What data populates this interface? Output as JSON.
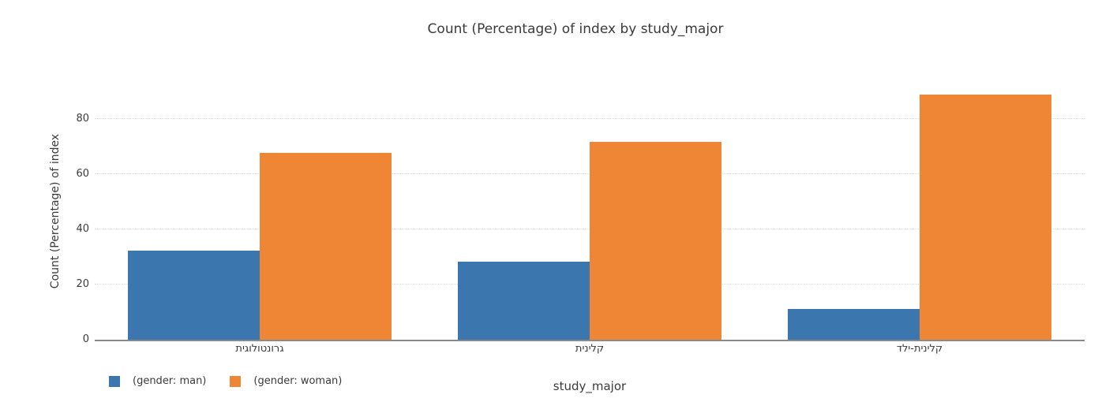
{
  "figure": {
    "title": "Count (Percentage) of index by study_major"
  },
  "y_axis": {
    "label": "Count (Percentage) of index",
    "ticks": [
      0,
      20,
      40,
      60,
      80
    ]
  },
  "x_axis": {
    "label": "study_major",
    "categories": [
      "גרונטולוגית",
      "קלינית",
      "קלינית-ילד"
    ]
  },
  "legend": {
    "items": [
      {
        "label": "(gender: man)",
        "color": "#3b76af"
      },
      {
        "label": "(gender: woman)",
        "color": "#ef8636"
      }
    ]
  },
  "colors": {
    "man_bar": "#3b76af",
    "woman_bar": "#ef8636",
    "axis_line": "#8a8a8a",
    "gridline": "#dcdcdc",
    "text": "#3a3a3a",
    "background": "#ffffff"
  },
  "chart_data": {
    "type": "bar",
    "title": "Count (Percentage) of index by study_major",
    "xlabel": "study_major",
    "ylabel": "Count (Percentage) of index",
    "categories": [
      "גרונטולוגית",
      "קלינית",
      "קלינית-ילד"
    ],
    "series": [
      {
        "name": "(gender: man)",
        "color": "#3b76af",
        "values": [
          32.2,
          28.4,
          11.1
        ]
      },
      {
        "name": "(gender: woman)",
        "color": "#ef8636",
        "values": [
          67.8,
          71.6,
          88.9
        ]
      }
    ],
    "ylim": [
      0,
      92
    ],
    "yticks": [
      0,
      20,
      40,
      60,
      80
    ],
    "grid": "horizontal-dotted",
    "legend_position": "bottom-left",
    "bar_grouping": "grouped"
  }
}
